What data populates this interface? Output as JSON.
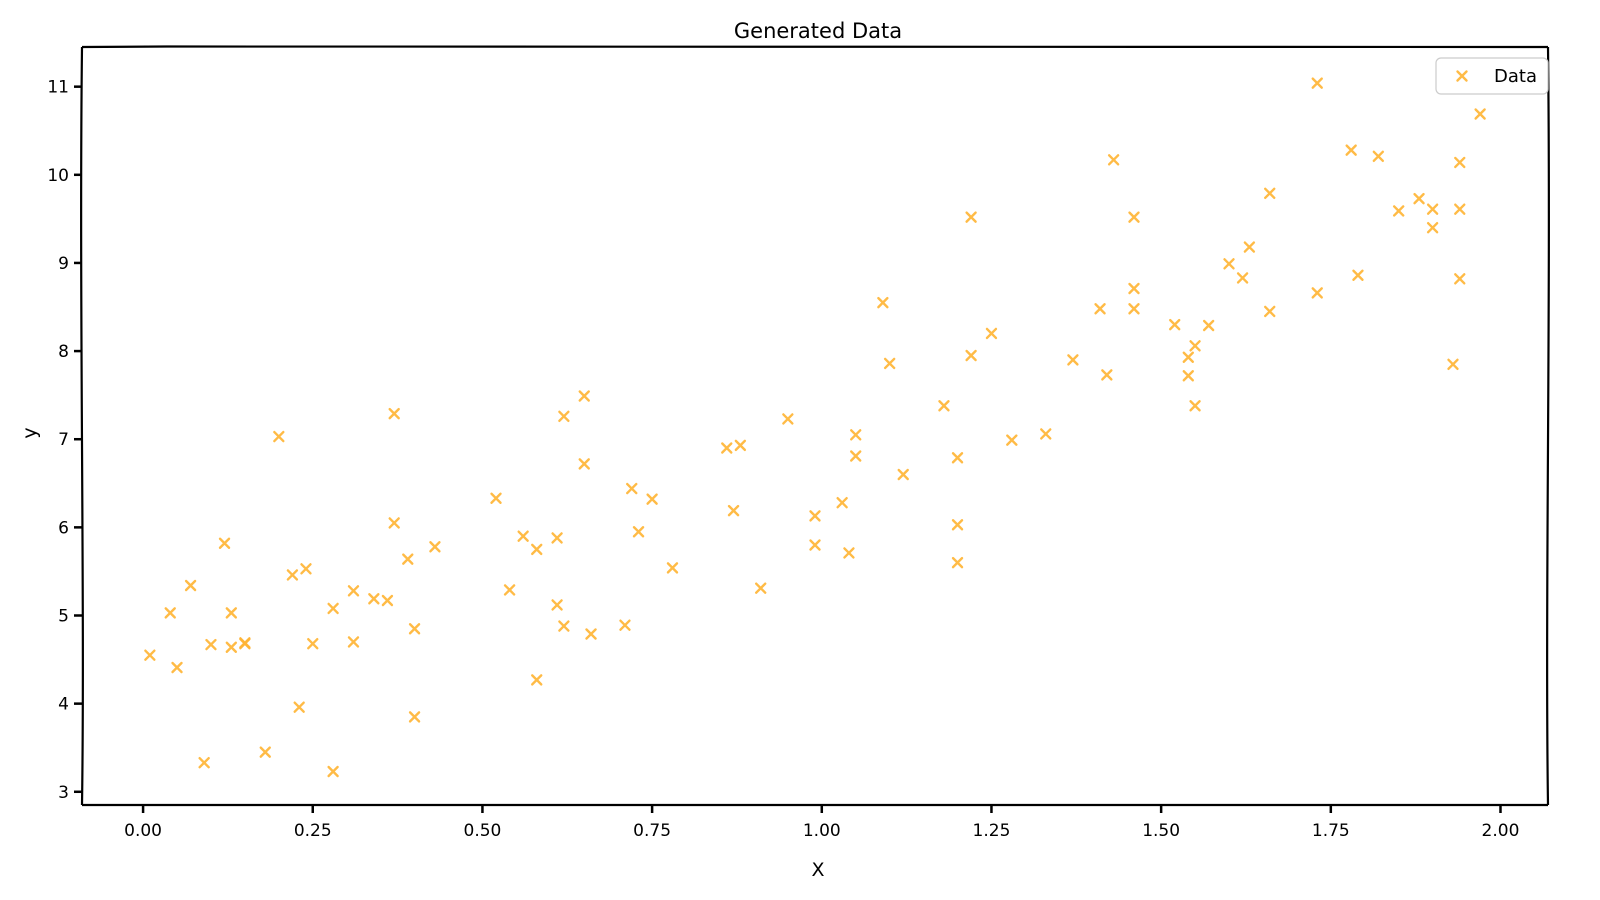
{
  "chart_data": {
    "type": "scatter",
    "title": "Generated Data",
    "xlabel": "X",
    "ylabel": "y",
    "xlim": [
      -0.09,
      2.07
    ],
    "ylim": [
      2.85,
      11.45
    ],
    "xticks": [
      "0.00",
      "0.25",
      "0.50",
      "0.75",
      "1.00",
      "1.25",
      "1.50",
      "1.75",
      "2.00"
    ],
    "yticks": [
      "3",
      "4",
      "5",
      "6",
      "7",
      "8",
      "9",
      "10",
      "11"
    ],
    "legend_position": "top-right",
    "grid": false,
    "series": [
      {
        "name": "Data",
        "color": "#FFB432",
        "marker": "x",
        "x": [
          0.01,
          0.04,
          0.05,
          0.07,
          0.09,
          0.1,
          0.12,
          0.13,
          0.13,
          0.15,
          0.15,
          0.18,
          0.2,
          0.22,
          0.23,
          0.24,
          0.25,
          0.28,
          0.28,
          0.31,
          0.31,
          0.34,
          0.36,
          0.37,
          0.37,
          0.39,
          0.4,
          0.4,
          0.43,
          0.52,
          0.54,
          0.56,
          0.58,
          0.58,
          0.61,
          0.61,
          0.62,
          0.62,
          0.65,
          0.65,
          0.66,
          0.71,
          0.72,
          0.73,
          0.75,
          0.78,
          0.86,
          0.87,
          0.88,
          0.91,
          0.95,
          0.99,
          0.99,
          1.03,
          1.04,
          1.05,
          1.05,
          1.09,
          1.1,
          1.12,
          1.18,
          1.2,
          1.2,
          1.2,
          1.22,
          1.22,
          1.25,
          1.28,
          1.33,
          1.37,
          1.41,
          1.42,
          1.43,
          1.46,
          1.46,
          1.46,
          1.52,
          1.54,
          1.54,
          1.55,
          1.55,
          1.57,
          1.6,
          1.62,
          1.63,
          1.66,
          1.66,
          1.73,
          1.73,
          1.78,
          1.79,
          1.82,
          1.85,
          1.88,
          1.9,
          1.9,
          1.93,
          1.94,
          1.94,
          1.94,
          1.97
        ],
        "y": [
          4.55,
          5.03,
          4.41,
          5.34,
          3.33,
          4.67,
          5.82,
          5.03,
          4.64,
          4.68,
          4.69,
          3.45,
          7.03,
          5.46,
          3.96,
          5.53,
          4.68,
          5.08,
          3.23,
          5.28,
          4.7,
          5.19,
          5.17,
          6.05,
          7.29,
          5.64,
          4.85,
          3.85,
          5.78,
          6.33,
          5.29,
          5.9,
          5.75,
          4.27,
          5.88,
          5.12,
          4.88,
          7.26,
          6.72,
          7.49,
          4.79,
          4.89,
          6.44,
          5.95,
          6.32,
          5.54,
          6.9,
          6.19,
          6.93,
          5.31,
          7.23,
          6.13,
          5.8,
          6.28,
          5.71,
          7.05,
          6.81,
          8.55,
          7.86,
          6.6,
          7.38,
          6.79,
          6.03,
          5.6,
          9.52,
          7.95,
          8.2,
          6.99,
          7.06,
          7.9,
          8.48,
          7.73,
          10.17,
          9.52,
          8.71,
          8.48,
          8.3,
          7.93,
          7.72,
          8.06,
          7.38,
          8.29,
          8.99,
          8.83,
          9.18,
          9.79,
          8.45,
          11.04,
          8.66,
          10.28,
          8.86,
          10.21,
          9.59,
          9.73,
          9.61,
          9.4,
          7.85,
          10.14,
          8.82,
          9.61,
          10.69
        ]
      }
    ]
  }
}
